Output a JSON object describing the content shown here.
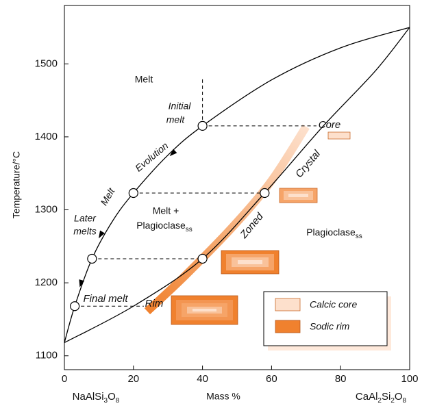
{
  "chart_data": {
    "type": "phase-diagram",
    "x_label": "Mass %",
    "y_label": "Temperature/°C",
    "x_end_labels": [
      [
        "NaAlSi",
        "3",
        "O",
        "8"
      ],
      [
        "CaAl",
        "2",
        "Si",
        "2",
        "O",
        "8"
      ]
    ],
    "xlim": [
      0,
      100
    ],
    "ylim": [
      1081,
      1580
    ],
    "xticks": [
      0,
      20,
      40,
      60,
      80,
      100
    ],
    "yticks": [
      1100,
      1200,
      1300,
      1400,
      1500
    ],
    "curves": [
      {
        "x": [
          0,
          3,
          8,
          14,
          20,
          30,
          40,
          60,
          80,
          100
        ],
        "values": [
          1118,
          1168,
          1233,
          1285,
          1323,
          1375,
          1415,
          1478,
          1522,
          1550
        ],
        "color": "#000000"
      },
      {
        "x": [
          0,
          20,
          40,
          58,
          75,
          90,
          100
        ],
        "values": [
          1118,
          1168,
          1233,
          1323,
          1415,
          1490,
          1550
        ],
        "color": "#000000"
      }
    ],
    "crystal_band": {
      "x": [
        24,
        35,
        49,
        60,
        70
      ],
      "values": [
        1161,
        1210,
        1278,
        1340,
        1414
      ],
      "rim_color": "#f0812e",
      "core_color": "#fde0cc"
    },
    "points": {
      "x": [
        3,
        8,
        20,
        40,
        40,
        58
      ],
      "values": [
        1168,
        1233,
        1323,
        1415,
        1233,
        1323
      ]
    },
    "dashed_lines": [
      {
        "x": [
          40,
          73
        ],
        "values": [
          1415,
          1415
        ]
      },
      {
        "x": [
          20,
          58
        ],
        "values": [
          1323,
          1323
        ]
      },
      {
        "x": [
          8,
          40
        ],
        "values": [
          1233,
          1233
        ]
      },
      {
        "x": [
          3,
          23
        ],
        "values": [
          1168,
          1168
        ]
      },
      {
        "x": [
          40,
          40
        ],
        "values": [
          1415,
          1480
        ]
      }
    ],
    "annotations": {
      "melt": "Melt",
      "initial_melt": [
        "Initial",
        "melt"
      ],
      "evolution": "Evolution",
      "melt_curve": "Melt",
      "later_melts": [
        "Later",
        "melts"
      ],
      "final_melt": "Final melt",
      "melt_plus": "Melt +",
      "plag_field": [
        "Plagioclase",
        "ss"
      ],
      "plag_mixed": [
        "Plagioclase",
        "ss"
      ],
      "zoned": "Zoned",
      "crystal": "Crystal",
      "core": "Core",
      "rim": "Rim"
    },
    "legend": [
      {
        "name": "Calcic core",
        "color": "#fde0cc"
      },
      {
        "name": "Sodic rim",
        "color": "#f0812e"
      }
    ]
  }
}
